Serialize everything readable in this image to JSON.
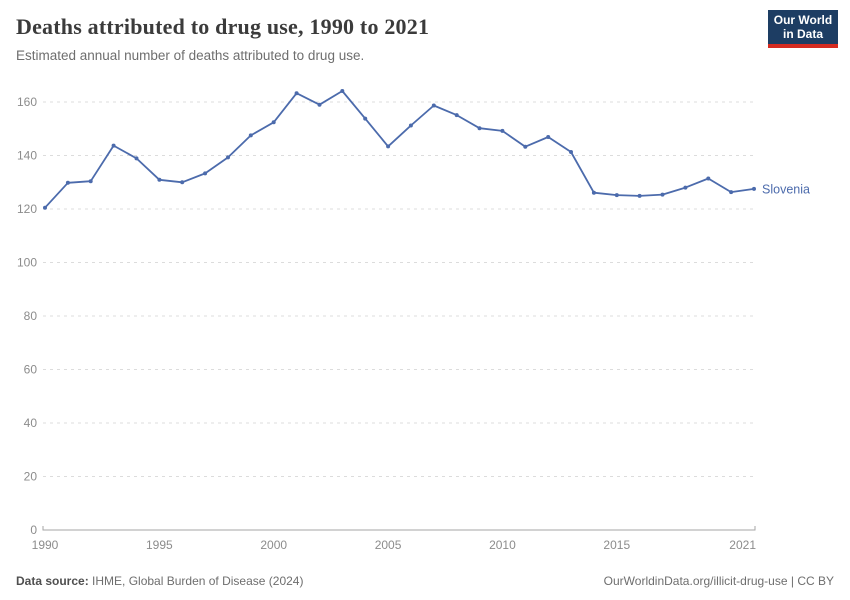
{
  "header": {
    "title": "Deaths attributed to drug use, 1990 to 2021",
    "subtitle": "Estimated annual number of deaths attributed to drug use.",
    "logo_line1": "Our World",
    "logo_line2": "in Data"
  },
  "colors": {
    "series_blue": "#4C6BAC",
    "gridline": "#dcdcdc",
    "axis": "#a6a6a6",
    "tick_text": "#8c8c8c",
    "logo_bg": "#1d3d63",
    "logo_red": "#d42b21"
  },
  "chart_data": {
    "type": "line",
    "title": "Deaths attributed to drug use, 1990 to 2021",
    "subtitle": "Estimated annual number of deaths attributed to drug use.",
    "xlabel": "",
    "ylabel": "",
    "xlim": [
      1990,
      2021
    ],
    "ylim": [
      0,
      160
    ],
    "grid": "horizontal-dashed",
    "legend_position": "right-of-line-end",
    "x_ticks": [
      1990,
      1995,
      2000,
      2005,
      2010,
      2015,
      2021
    ],
    "y_ticks": [
      0,
      20,
      40,
      60,
      80,
      100,
      120,
      140,
      160
    ],
    "x": [
      1990,
      1991,
      1992,
      1993,
      1994,
      1995,
      1996,
      1997,
      1998,
      1999,
      2000,
      2001,
      2002,
      2003,
      2004,
      2005,
      2006,
      2007,
      2008,
      2009,
      2010,
      2011,
      2012,
      2013,
      2014,
      2015,
      2016,
      2017,
      2018,
      2019,
      2020,
      2021
    ],
    "series": [
      {
        "name": "Slovenia",
        "color": "#4C6BAC",
        "values": [
          120.5,
          129.8,
          130.4,
          143.7,
          138.9,
          130.9,
          130.0,
          133.3,
          139.3,
          147.5,
          152.4,
          163.3,
          159.0,
          164.1,
          153.8,
          143.4,
          151.2,
          158.7,
          155.1,
          150.2,
          149.2,
          143.3,
          146.9,
          141.3,
          126.1,
          125.2,
          124.9,
          125.4,
          128.0,
          131.4,
          126.3,
          127.5
        ]
      }
    ]
  },
  "footer": {
    "source_label": "Data source:",
    "source_value": " IHME, Global Burden of Disease (2024)",
    "url": "OurWorldinData.org/illicit-drug-use",
    "separator": " | ",
    "license": "CC BY"
  }
}
